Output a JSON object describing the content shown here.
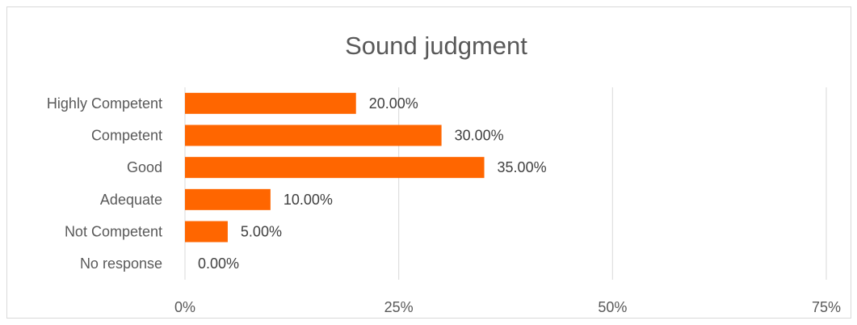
{
  "chart_data": {
    "type": "bar",
    "orientation": "horizontal",
    "title": "Sound judgment",
    "categories": [
      "Highly Competent",
      "Competent",
      "Good",
      "Adequate",
      "Not Competent",
      "No response"
    ],
    "values": [
      20,
      30,
      35,
      10,
      5,
      0
    ],
    "data_labels": [
      "20.00%",
      "30.00%",
      "35.00%",
      "10.00%",
      "5.00%",
      "0.00%"
    ],
    "x_ticks": [
      "0%",
      "25%",
      "50%",
      "75%"
    ],
    "x_tick_values": [
      0,
      25,
      50,
      75
    ],
    "xlim": [
      0,
      75
    ],
    "grid": "vertical",
    "bar_color": "#ff6600",
    "legend": "none"
  }
}
